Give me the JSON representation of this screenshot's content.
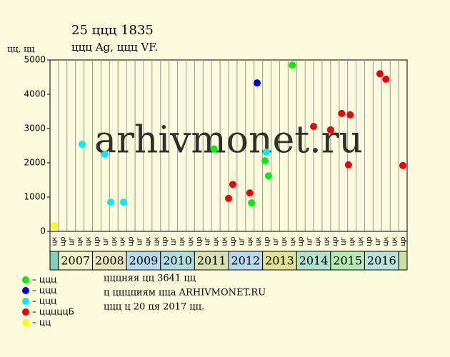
{
  "chart_data": {
    "type": "scatter",
    "title": "25 ццц 1835",
    "subtitle": "ццц Ag, ццц VF.",
    "y_label": "цц, цц",
    "watermark": "arhivmonet.ru",
    "ylim": [
      0,
      5000
    ],
    "yticks": [
      0,
      1000,
      2000,
      3000,
      4000,
      5000
    ],
    "xlim": [
      0,
      42
    ],
    "quarters": [
      "цк",
      "цр",
      "цг",
      "цк",
      "цк",
      "цр",
      "цг",
      "цк",
      "цк",
      "цр",
      "цг",
      "цк",
      "цк",
      "цр",
      "цг",
      "цк",
      "цк",
      "цр",
      "цг",
      "цк",
      "цк",
      "цр",
      "цг",
      "цк",
      "цк",
      "цр",
      "цг",
      "цк",
      "цк",
      "цр",
      "цг",
      "цк",
      "цк",
      "цр",
      "цг",
      "цк",
      "цк",
      "цр",
      "цг",
      "цк",
      "цк",
      "цр"
    ],
    "years": [
      {
        "label": "2007",
        "start": 1,
        "end": 5,
        "color": "#eef2c8"
      },
      {
        "label": "2008",
        "start": 5,
        "end": 9,
        "color": "#e6e6c0"
      },
      {
        "label": "2009",
        "start": 9,
        "end": 13,
        "color": "#b8d8ec"
      },
      {
        "label": "2010",
        "start": 13,
        "end": 17,
        "color": "#b0dce0"
      },
      {
        "label": "2011",
        "start": 17,
        "end": 21,
        "color": "#d8e0b0"
      },
      {
        "label": "2012",
        "start": 21,
        "end": 25,
        "color": "#b8d8ec"
      },
      {
        "label": "2013",
        "start": 25,
        "end": 29,
        "color": "#e2e294"
      },
      {
        "label": "2014",
        "start": 29,
        "end": 33,
        "color": "#b0e2cc"
      },
      {
        "label": "2015",
        "start": 33,
        "end": 37,
        "color": "#b4eab4"
      },
      {
        "label": "2016",
        "start": 37,
        "end": 41,
        "color": "#b8e2dc"
      }
    ],
    "series": [
      {
        "name": "– ццц",
        "color": "#00ee00",
        "x": [
          19.3,
          25.3,
          23.7,
          25.7,
          28.5
        ],
        "values": [
          2400,
          2060,
          830,
          1620,
          4850
        ]
      },
      {
        "name": "– ццц",
        "color": "#0000dd",
        "x": [
          24.36
        ],
        "values": [
          4330
        ]
      },
      {
        "name": "– ццц",
        "color": "#00eeee",
        "x": [
          3.78,
          6.47,
          7.14,
          8.65,
          25.45
        ],
        "values": [
          2540,
          2250,
          850,
          850,
          2310
        ]
      },
      {
        "name": "– цццццБ",
        "color": "#ee0000",
        "x": [
          21,
          21.5,
          23.5,
          31,
          33,
          34.3,
          35.3,
          35.1,
          38.8,
          39.5,
          41.5
        ],
        "values": [
          960,
          1370,
          1120,
          3060,
          2960,
          3440,
          3400,
          1940,
          4600,
          4440,
          1920
        ]
      },
      {
        "name": "– цц",
        "color": "#ffff00",
        "x": [
          0.5
        ],
        "values": [
          167
        ]
      }
    ],
    "notes": [
      "цццняя цц 3641 цц",
      "ц цццциям ццa ARHIVMONET.RU",
      "ццц ц 20 ця 2017 цц."
    ]
  }
}
